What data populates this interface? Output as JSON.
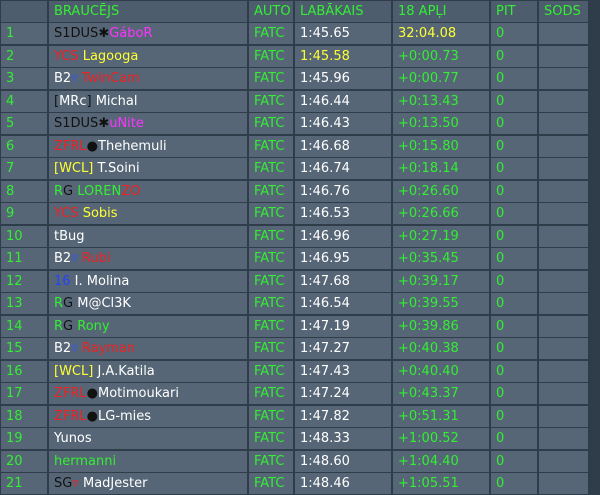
{
  "columns": {
    "driver": "BRAUCĒJS",
    "car": "AUTO",
    "best": "LABĀKAIS",
    "gap": "18 APĻI",
    "pit": "PIT",
    "penalty": "SODS"
  },
  "colors": {
    "header": "#33ee33",
    "pos": "#33ee33",
    "car": "#33ee33",
    "best": "#ffffff",
    "gap": "#33ee33",
    "pit": "#33ee33",
    "highlight": "#ffff33"
  },
  "rows": [
    {
      "pos": "1",
      "driver": [
        {
          "text": "S1DUS",
          "color": "#111111"
        },
        {
          "text": "✱",
          "color": "#111111"
        },
        {
          "text": "GáboR",
          "color": "#ff33ff"
        }
      ],
      "car": "FATC",
      "best": "1:45.65",
      "gap": "32:04.08",
      "pit": "0",
      "gap_highlight": true
    },
    {
      "pos": "2",
      "driver": [
        {
          "text": "YCS",
          "color": "#ee2222"
        },
        {
          "text": " Lagooga",
          "color": "#ffff33"
        }
      ],
      "car": "FATC",
      "best": "1:45.58",
      "gap": "+0:00.73",
      "pit": "0",
      "best_highlight": true
    },
    {
      "pos": "3",
      "driver": [
        {
          "text": "B2",
          "color": "#ffffff"
        },
        {
          "text": "▿",
          "color": "#3355ff"
        },
        {
          "text": " TwinCam",
          "color": "#ee2222"
        }
      ],
      "car": "FATC",
      "best": "1:45.96",
      "gap": "+0:00.77",
      "pit": "0"
    },
    {
      "pos": "4",
      "driver": [
        {
          "text": "[",
          "color": "#111111"
        },
        {
          "text": "MRc",
          "color": "#ffffff"
        },
        {
          "text": "]",
          "color": "#111111"
        },
        {
          "text": " Michal",
          "color": "#ffffff"
        }
      ],
      "car": "FATC",
      "best": "1:46.44",
      "gap": "+0:13.43",
      "pit": "0"
    },
    {
      "pos": "5",
      "driver": [
        {
          "text": "S1DUS",
          "color": "#111111"
        },
        {
          "text": "✱",
          "color": "#111111"
        },
        {
          "text": "uNite",
          "color": "#ff33ff"
        }
      ],
      "car": "FATC",
      "best": "1:46.43",
      "gap": "+0:13.50",
      "pit": "0"
    },
    {
      "pos": "6",
      "driver": [
        {
          "text": "ZFRL",
          "color": "#ee2222"
        },
        {
          "text": "●",
          "color": "#111111"
        },
        {
          "text": "Thehemuli",
          "color": "#ffffff"
        }
      ],
      "car": "FATC",
      "best": "1:46.68",
      "gap": "+0:15.80",
      "pit": "0"
    },
    {
      "pos": "7",
      "driver": [
        {
          "text": "[WCL]",
          "color": "#ffff33"
        },
        {
          "text": " T.Soini",
          "color": "#ffffff"
        }
      ],
      "car": "FATC",
      "best": "1:46.74",
      "gap": "+0:18.14",
      "pit": "0"
    },
    {
      "pos": "8",
      "driver": [
        {
          "text": "R",
          "color": "#33ee33"
        },
        {
          "text": "G",
          "color": "#111111"
        },
        {
          "text": " LOREN",
          "color": "#33ee33"
        },
        {
          "text": "ZO",
          "color": "#ee2222"
        }
      ],
      "car": "FATC",
      "best": "1:46.76",
      "gap": "+0:26.60",
      "pit": "0"
    },
    {
      "pos": "9",
      "driver": [
        {
          "text": "YCS",
          "color": "#ee2222"
        },
        {
          "text": " Sobis",
          "color": "#ffff33"
        }
      ],
      "car": "FATC",
      "best": "1:46.53",
      "gap": "+0:26.66",
      "pit": "0"
    },
    {
      "pos": "10",
      "driver": [
        {
          "text": "tBug",
          "color": "#ffffff"
        }
      ],
      "car": "FATC",
      "best": "1:46.96",
      "gap": "+0:27.19",
      "pit": "0"
    },
    {
      "pos": "11",
      "driver": [
        {
          "text": "B2",
          "color": "#ffffff"
        },
        {
          "text": "▿",
          "color": "#3355ff"
        },
        {
          "text": " Rubi",
          "color": "#ee2222"
        }
      ],
      "car": "FATC",
      "best": "1:46.95",
      "gap": "+0:35.45",
      "pit": "0"
    },
    {
      "pos": "12",
      "driver": [
        {
          "text": "16",
          "color": "#2244ff"
        },
        {
          "text": " I. Molina",
          "color": "#ffffff"
        }
      ],
      "car": "FATC",
      "best": "1:47.68",
      "gap": "+0:39.17",
      "pit": "0"
    },
    {
      "pos": "13",
      "driver": [
        {
          "text": "R",
          "color": "#33ee33"
        },
        {
          "text": "G",
          "color": "#111111"
        },
        {
          "text": " M@Cl3K",
          "color": "#ffffff"
        }
      ],
      "car": "FATC",
      "best": "1:46.54",
      "gap": "+0:39.55",
      "pit": "0"
    },
    {
      "pos": "14",
      "driver": [
        {
          "text": "R",
          "color": "#33ee33"
        },
        {
          "text": "G",
          "color": "#111111"
        },
        {
          "text": " Rony",
          "color": "#33ee33"
        }
      ],
      "car": "FATC",
      "best": "1:47.19",
      "gap": "+0:39.86",
      "pit": "0"
    },
    {
      "pos": "15",
      "driver": [
        {
          "text": "B2",
          "color": "#ffffff"
        },
        {
          "text": "▿",
          "color": "#3355ff"
        },
        {
          "text": " Rayman",
          "color": "#ee2222"
        }
      ],
      "car": "FATC",
      "best": "1:47.27",
      "gap": "+0:40.38",
      "pit": "0"
    },
    {
      "pos": "16",
      "driver": [
        {
          "text": "[WCL]",
          "color": "#ffff33"
        },
        {
          "text": " J.A.Katila",
          "color": "#ffffff"
        }
      ],
      "car": "FATC",
      "best": "1:47.43",
      "gap": "+0:40.40",
      "pit": "0"
    },
    {
      "pos": "17",
      "driver": [
        {
          "text": "ZFRL",
          "color": "#ee2222"
        },
        {
          "text": "●",
          "color": "#111111"
        },
        {
          "text": "Motimoukari",
          "color": "#ffffff"
        }
      ],
      "car": "FATC",
      "best": "1:47.24",
      "gap": "+0:43.37",
      "pit": "0"
    },
    {
      "pos": "18",
      "driver": [
        {
          "text": "ZFRL",
          "color": "#ee2222"
        },
        {
          "text": "●",
          "color": "#111111"
        },
        {
          "text": "LG-mies",
          "color": "#ffffff"
        }
      ],
      "car": "FATC",
      "best": "1:47.82",
      "gap": "+0:51.31",
      "pit": "0"
    },
    {
      "pos": "19",
      "driver": [
        {
          "text": "Yunos",
          "color": "#ffffff"
        }
      ],
      "car": "FATC",
      "best": "1:48.33",
      "gap": "+1:00.52",
      "pit": "0"
    },
    {
      "pos": "20",
      "driver": [
        {
          "text": "hermanni",
          "color": "#33ee33"
        }
      ],
      "car": "FATC",
      "best": "1:48.60",
      "gap": "+1:04.40",
      "pit": "0"
    },
    {
      "pos": "21",
      "driver": [
        {
          "text": "SG",
          "color": "#111111"
        },
        {
          "text": "▿",
          "color": "#ee2222"
        },
        {
          "text": " MadJester",
          "color": "#ffffff"
        }
      ],
      "car": "FATC",
      "best": "1:48.46",
      "gap": "+1:05.51",
      "pit": "0"
    }
  ]
}
